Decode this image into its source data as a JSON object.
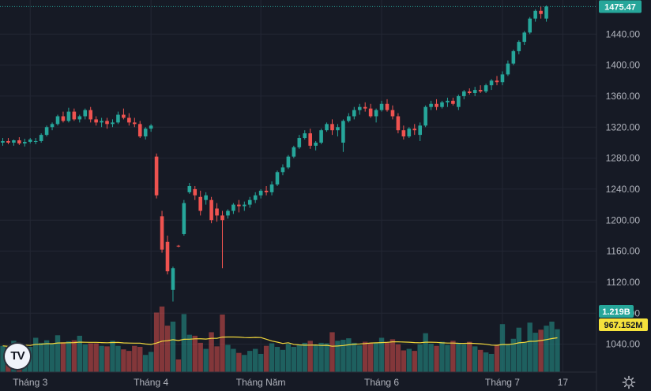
{
  "chart_data": {
    "type": "candlestick",
    "colors": {
      "up": "#26a69a",
      "down": "#ef5350",
      "ma": "#f2d83c",
      "last_price_tag": "#26a69a",
      "volume_tag": "#26a69a",
      "ma_tag": "#f5e23c",
      "background": "#161a25",
      "grid": "#232734"
    },
    "y_axis": {
      "min": 1004,
      "max": 1484,
      "ticks": [
        1040,
        1080,
        1120,
        1160,
        1200,
        1240,
        1280,
        1320,
        1360,
        1400,
        1440
      ],
      "tick_labels": [
        "1040.00",
        "1080.00",
        "1120.00",
        "1160.00",
        "1200.00",
        "1240.00",
        "1280.00",
        "1320.00",
        "1360.00",
        "1400.00",
        "1440.00"
      ]
    },
    "x_axis": {
      "labels": [
        {
          "label": "Tháng 3",
          "index": 5
        },
        {
          "label": "Tháng 4",
          "index": 27
        },
        {
          "label": "Tháng Năm",
          "index": 47
        },
        {
          "label": "Tháng 6",
          "index": 69
        },
        {
          "label": "Tháng 7",
          "index": 91
        },
        {
          "label": "17",
          "index": 102
        }
      ]
    },
    "last_price": {
      "label": "1475.47",
      "value": 1475.47
    },
    "volume_label": "1.219B",
    "ma_label": "967.152M",
    "volume_max": 1.5,
    "candles": [
      {
        "o": 1300,
        "h": 1306,
        "l": 1296,
        "c": 1302
      },
      {
        "o": 1302,
        "h": 1306,
        "l": 1298,
        "c": 1300
      },
      {
        "o": 1300,
        "h": 1304,
        "l": 1296,
        "c": 1303
      },
      {
        "o": 1303,
        "h": 1307,
        "l": 1297,
        "c": 1299
      },
      {
        "o": 1299,
        "h": 1305,
        "l": 1295,
        "c": 1301
      },
      {
        "o": 1301,
        "h": 1306,
        "l": 1299,
        "c": 1304
      },
      {
        "o": 1302,
        "h": 1306,
        "l": 1298,
        "c": 1302
      },
      {
        "o": 1302,
        "h": 1312,
        "l": 1300,
        "c": 1310
      },
      {
        "o": 1310,
        "h": 1322,
        "l": 1308,
        "c": 1320
      },
      {
        "o": 1320,
        "h": 1326,
        "l": 1316,
        "c": 1324
      },
      {
        "o": 1324,
        "h": 1336,
        "l": 1322,
        "c": 1334
      },
      {
        "o": 1334,
        "h": 1340,
        "l": 1326,
        "c": 1328
      },
      {
        "o": 1328,
        "h": 1345,
        "l": 1326,
        "c": 1340
      },
      {
        "o": 1340,
        "h": 1344,
        "l": 1328,
        "c": 1330
      },
      {
        "o": 1330,
        "h": 1336,
        "l": 1326,
        "c": 1334
      },
      {
        "o": 1334,
        "h": 1344,
        "l": 1330,
        "c": 1342
      },
      {
        "o": 1342,
        "h": 1346,
        "l": 1326,
        "c": 1330
      },
      {
        "o": 1330,
        "h": 1334,
        "l": 1322,
        "c": 1326
      },
      {
        "o": 1326,
        "h": 1332,
        "l": 1320,
        "c": 1328
      },
      {
        "o": 1328,
        "h": 1332,
        "l": 1318,
        "c": 1324
      },
      {
        "o": 1324,
        "h": 1330,
        "l": 1320,
        "c": 1326
      },
      {
        "o": 1326,
        "h": 1340,
        "l": 1324,
        "c": 1336
      },
      {
        "o": 1336,
        "h": 1344,
        "l": 1330,
        "c": 1332
      },
      {
        "o": 1332,
        "h": 1338,
        "l": 1322,
        "c": 1326
      },
      {
        "o": 1326,
        "h": 1332,
        "l": 1320,
        "c": 1324
      },
      {
        "o": 1324,
        "h": 1328,
        "l": 1306,
        "c": 1308
      },
      {
        "o": 1308,
        "h": 1320,
        "l": 1304,
        "c": 1318
      },
      {
        "o": 1318,
        "h": 1324,
        "l": 1314,
        "c": 1322
      },
      {
        "o": 1282,
        "h": 1286,
        "l": 1228,
        "c": 1232
      },
      {
        "o": 1205,
        "h": 1212,
        "l": 1158,
        "c": 1162
      },
      {
        "o": 1172,
        "h": 1180,
        "l": 1130,
        "c": 1134
      },
      {
        "o": 1110,
        "h": 1140,
        "l": 1095,
        "c": 1138
      },
      {
        "o": 1167,
        "h": 1168,
        "l": 1165,
        "c": 1166
      },
      {
        "o": 1182,
        "h": 1226,
        "l": 1180,
        "c": 1222
      },
      {
        "o": 1236,
        "h": 1248,
        "l": 1234,
        "c": 1244
      },
      {
        "o": 1240,
        "h": 1244,
        "l": 1226,
        "c": 1232
      },
      {
        "o": 1230,
        "h": 1238,
        "l": 1206,
        "c": 1212
      },
      {
        "o": 1226,
        "h": 1236,
        "l": 1220,
        "c": 1232
      },
      {
        "o": 1226,
        "h": 1230,
        "l": 1196,
        "c": 1200
      },
      {
        "o": 1215,
        "h": 1222,
        "l": 1198,
        "c": 1206
      },
      {
        "o": 1206,
        "h": 1212,
        "l": 1138,
        "c": 1200
      },
      {
        "o": 1206,
        "h": 1214,
        "l": 1202,
        "c": 1212
      },
      {
        "o": 1212,
        "h": 1222,
        "l": 1208,
        "c": 1220
      },
      {
        "o": 1220,
        "h": 1226,
        "l": 1210,
        "c": 1218
      },
      {
        "o": 1218,
        "h": 1224,
        "l": 1212,
        "c": 1220
      },
      {
        "o": 1220,
        "h": 1230,
        "l": 1216,
        "c": 1226
      },
      {
        "o": 1226,
        "h": 1236,
        "l": 1222,
        "c": 1232
      },
      {
        "o": 1232,
        "h": 1240,
        "l": 1228,
        "c": 1238
      },
      {
        "o": 1238,
        "h": 1244,
        "l": 1232,
        "c": 1236
      },
      {
        "o": 1236,
        "h": 1250,
        "l": 1232,
        "c": 1246
      },
      {
        "o": 1246,
        "h": 1264,
        "l": 1244,
        "c": 1262
      },
      {
        "o": 1262,
        "h": 1272,
        "l": 1258,
        "c": 1268
      },
      {
        "o": 1268,
        "h": 1284,
        "l": 1266,
        "c": 1282
      },
      {
        "o": 1282,
        "h": 1296,
        "l": 1280,
        "c": 1294
      },
      {
        "o": 1294,
        "h": 1310,
        "l": 1292,
        "c": 1306
      },
      {
        "o": 1306,
        "h": 1316,
        "l": 1304,
        "c": 1312
      },
      {
        "o": 1312,
        "h": 1318,
        "l": 1292,
        "c": 1296
      },
      {
        "o": 1296,
        "h": 1302,
        "l": 1290,
        "c": 1300
      },
      {
        "o": 1300,
        "h": 1318,
        "l": 1298,
        "c": 1316
      },
      {
        "o": 1316,
        "h": 1326,
        "l": 1314,
        "c": 1324
      },
      {
        "o": 1324,
        "h": 1330,
        "l": 1310,
        "c": 1316
      },
      {
        "o": 1316,
        "h": 1324,
        "l": 1308,
        "c": 1320
      },
      {
        "o": 1300,
        "h": 1330,
        "l": 1288,
        "c": 1328
      },
      {
        "o": 1328,
        "h": 1338,
        "l": 1326,
        "c": 1334
      },
      {
        "o": 1334,
        "h": 1346,
        "l": 1330,
        "c": 1342
      },
      {
        "o": 1342,
        "h": 1350,
        "l": 1336,
        "c": 1346
      },
      {
        "o": 1346,
        "h": 1352,
        "l": 1340,
        "c": 1344
      },
      {
        "o": 1344,
        "h": 1350,
        "l": 1332,
        "c": 1334
      },
      {
        "o": 1334,
        "h": 1344,
        "l": 1326,
        "c": 1342
      },
      {
        "o": 1342,
        "h": 1354,
        "l": 1340,
        "c": 1350
      },
      {
        "o": 1350,
        "h": 1356,
        "l": 1340,
        "c": 1342
      },
      {
        "o": 1342,
        "h": 1348,
        "l": 1330,
        "c": 1334
      },
      {
        "o": 1334,
        "h": 1338,
        "l": 1312,
        "c": 1316
      },
      {
        "o": 1316,
        "h": 1322,
        "l": 1304,
        "c": 1308
      },
      {
        "o": 1308,
        "h": 1320,
        "l": 1306,
        "c": 1318
      },
      {
        "o": 1318,
        "h": 1324,
        "l": 1310,
        "c": 1316
      },
      {
        "o": 1310,
        "h": 1326,
        "l": 1302,
        "c": 1322
      },
      {
        "o": 1322,
        "h": 1348,
        "l": 1320,
        "c": 1346
      },
      {
        "o": 1346,
        "h": 1354,
        "l": 1342,
        "c": 1350
      },
      {
        "o": 1350,
        "h": 1356,
        "l": 1342,
        "c": 1346
      },
      {
        "o": 1346,
        "h": 1354,
        "l": 1344,
        "c": 1352
      },
      {
        "o": 1352,
        "h": 1358,
        "l": 1346,
        "c": 1354
      },
      {
        "o": 1354,
        "h": 1358,
        "l": 1348,
        "c": 1350
      },
      {
        "o": 1346,
        "h": 1362,
        "l": 1342,
        "c": 1360
      },
      {
        "o": 1360,
        "h": 1368,
        "l": 1356,
        "c": 1366
      },
      {
        "o": 1366,
        "h": 1370,
        "l": 1362,
        "c": 1364
      },
      {
        "o": 1364,
        "h": 1372,
        "l": 1360,
        "c": 1368
      },
      {
        "o": 1368,
        "h": 1374,
        "l": 1364,
        "c": 1366
      },
      {
        "o": 1366,
        "h": 1376,
        "l": 1364,
        "c": 1374
      },
      {
        "o": 1374,
        "h": 1382,
        "l": 1368,
        "c": 1380
      },
      {
        "o": 1380,
        "h": 1386,
        "l": 1374,
        "c": 1378
      },
      {
        "o": 1378,
        "h": 1392,
        "l": 1374,
        "c": 1388
      },
      {
        "o": 1388,
        "h": 1406,
        "l": 1386,
        "c": 1402
      },
      {
        "o": 1402,
        "h": 1420,
        "l": 1400,
        "c": 1418
      },
      {
        "o": 1418,
        "h": 1432,
        "l": 1414,
        "c": 1430
      },
      {
        "o": 1430,
        "h": 1444,
        "l": 1426,
        "c": 1442
      },
      {
        "o": 1442,
        "h": 1462,
        "l": 1440,
        "c": 1460
      },
      {
        "o": 1460,
        "h": 1472,
        "l": 1456,
        "c": 1470
      },
      {
        "o": 1470,
        "h": 1476,
        "l": 1460,
        "c": 1466
      },
      {
        "o": 1460,
        "h": 1477,
        "l": 1456,
        "c": 1475.47
      }
    ],
    "volumes": [
      0.52,
      0.5,
      0.62,
      0.5,
      0.53,
      0.5,
      0.68,
      0.58,
      0.63,
      0.56,
      0.73,
      0.59,
      0.61,
      0.63,
      0.72,
      0.55,
      0.57,
      0.57,
      0.52,
      0.51,
      0.62,
      0.52,
      0.45,
      0.42,
      0.52,
      0.5,
      0.34,
      0.4,
      1.18,
      1.3,
      0.92,
      1.0,
      0.25,
      1.15,
      0.74,
      0.72,
      0.58,
      0.46,
      0.79,
      0.51,
      1.14,
      0.54,
      0.46,
      0.38,
      0.34,
      0.42,
      0.46,
      0.36,
      0.52,
      0.57,
      0.5,
      0.44,
      0.56,
      0.5,
      0.54,
      0.58,
      0.62,
      0.53,
      0.58,
      0.57,
      0.79,
      0.62,
      0.64,
      0.67,
      0.58,
      0.53,
      0.6,
      0.58,
      0.58,
      0.68,
      0.6,
      0.65,
      0.55,
      0.43,
      0.46,
      0.42,
      0.55,
      0.77,
      0.56,
      0.52,
      0.6,
      0.54,
      0.62,
      0.58,
      0.55,
      0.6,
      0.51,
      0.44,
      0.39,
      0.36,
      0.54,
      0.95,
      0.55,
      0.66,
      0.88,
      0.6,
      0.98,
      0.78,
      0.84,
      0.92,
      1.0,
      0.85
    ]
  },
  "icons": {
    "logo": "tradingview-logo",
    "settings": "gear-icon"
  },
  "logo_text": "TV"
}
